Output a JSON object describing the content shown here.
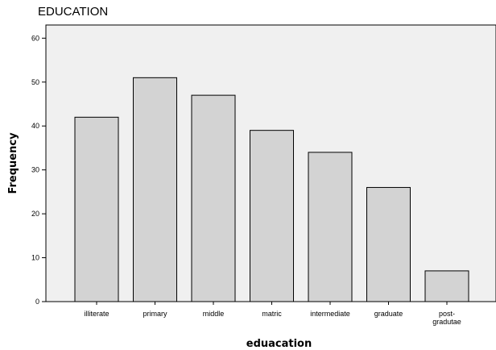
{
  "chart_data": {
    "type": "bar",
    "title": "EDUCATION",
    "xlabel": "eduacation",
    "ylabel": "Frequency",
    "categories": [
      "illiterate",
      "primary",
      "middle",
      "matric",
      "intermediate",
      "graduate",
      "post-\ngradutae"
    ],
    "values": [
      42,
      51,
      47,
      39,
      34,
      26,
      7
    ],
    "ylim": [
      0,
      63
    ],
    "yticks": [
      0,
      10,
      20,
      30,
      40,
      50,
      60
    ],
    "grid": false,
    "colors": {
      "plot_background": "#f0f0f0",
      "bar_fill": "#d3d3d3",
      "bar_stroke": "#000000"
    }
  }
}
